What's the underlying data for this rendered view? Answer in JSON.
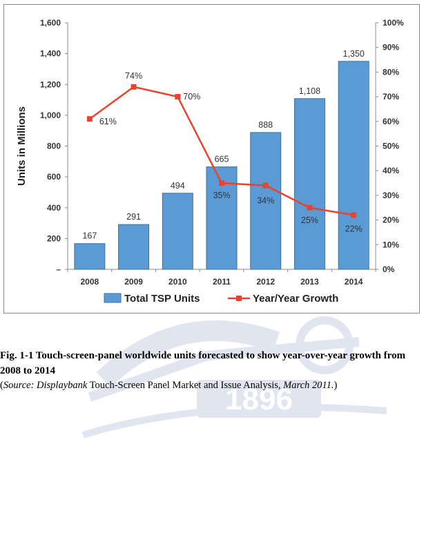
{
  "chart_data": {
    "type": "bar",
    "categories": [
      "2008",
      "2009",
      "2010",
      "2011",
      "2012",
      "2013",
      "2014"
    ],
    "series": [
      {
        "name": "Total TSP Units",
        "type": "bar",
        "axis": "left",
        "values": [
          167,
          291,
          494,
          665,
          888,
          1108,
          1350
        ],
        "labels": [
          "167",
          "291",
          "494",
          "665",
          "888",
          "1,108",
          "1,350"
        ]
      },
      {
        "name": "Year/Year Growth",
        "type": "line",
        "axis": "right",
        "values": [
          61,
          74,
          70,
          35,
          34,
          25,
          22
        ],
        "labels": [
          "61%",
          "74%",
          "70%",
          "35%",
          "34%",
          "25%",
          "22%"
        ]
      }
    ],
    "ylabel": "Units in Millions",
    "ylim": [
      0,
      1600
    ],
    "y_ticks": [
      "–",
      "200",
      "400",
      "600",
      "800",
      "1,000",
      "1,200",
      "1,400",
      "1,600"
    ],
    "y2lim": [
      0,
      100
    ],
    "y2_ticks": [
      "0%",
      "10%",
      "20%",
      "30%",
      "40%",
      "50%",
      "60%",
      "70%",
      "80%",
      "90%",
      "100%"
    ],
    "grid": false,
    "legend_position": "bottom",
    "colors": {
      "bar_fill": "#5b9bd5",
      "bar_stroke": "#41719c",
      "line": "#e8432e"
    }
  },
  "caption": {
    "figure": "Fig. 1-1 Touch-screen-panel worldwide units forecasted to show year-over-year growth from 2008 to 2014",
    "source_open": "(",
    "source_prefix": "Source: Displaybank",
    "source_title": " Touch-Screen Panel Market and Issue Analysis,",
    "source_date": " March 2011.",
    "source_close": ")"
  },
  "watermark": {
    "text": "1896"
  }
}
